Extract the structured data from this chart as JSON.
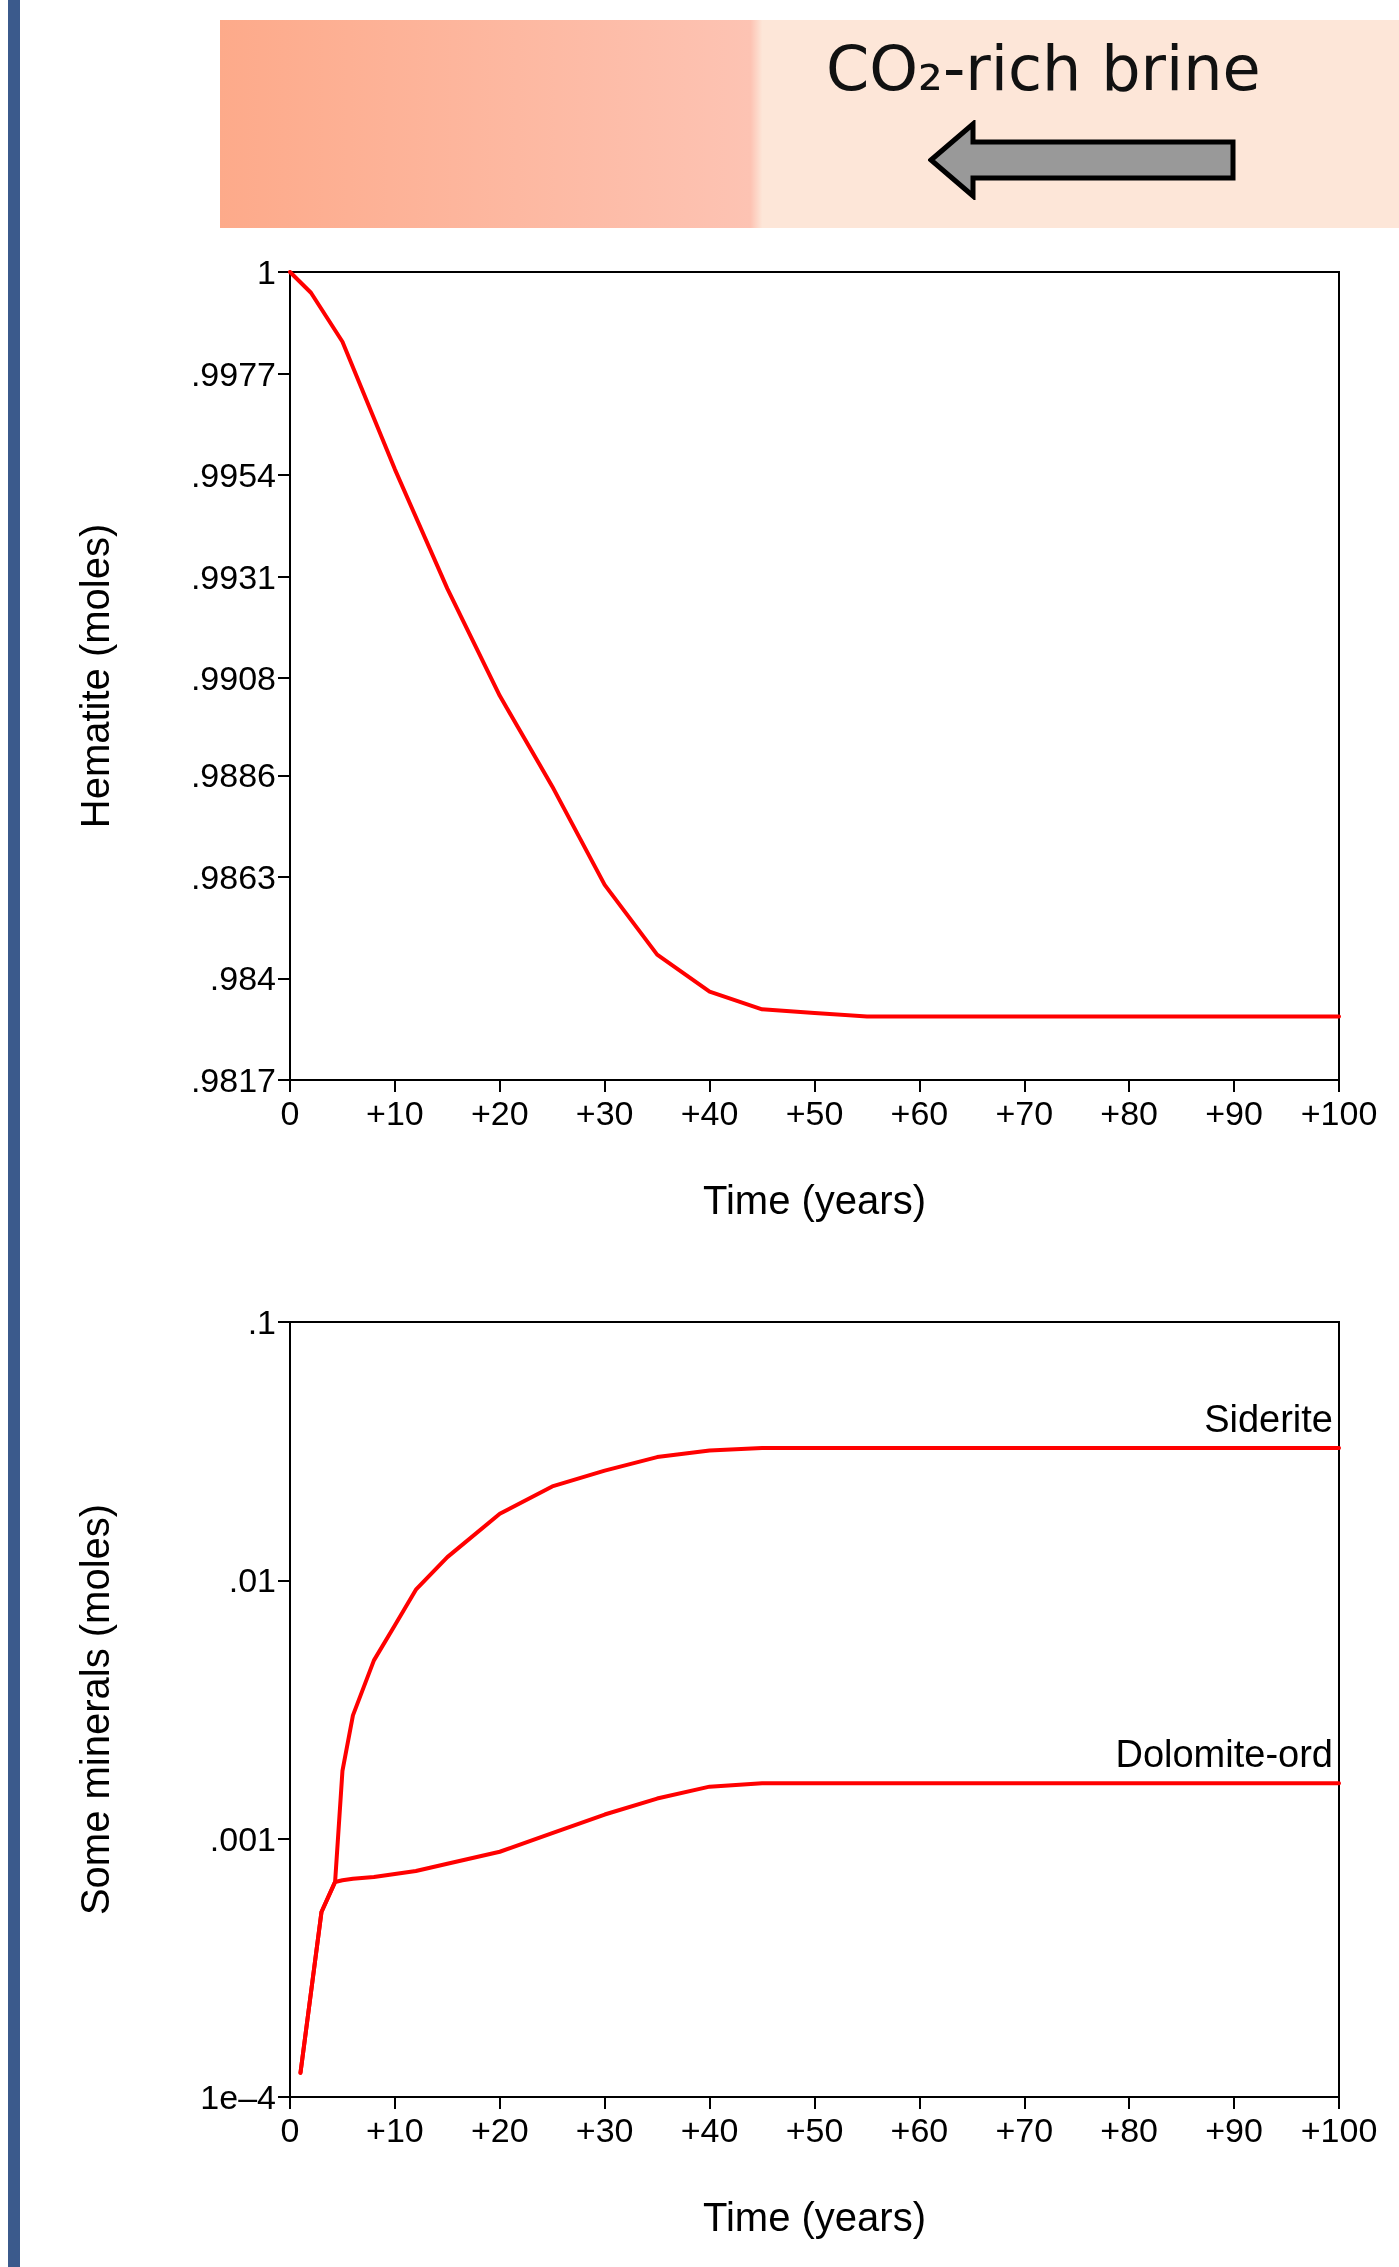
{
  "chart_data": [
    {
      "type": "line",
      "annotations": [
        "CO₂-rich brine"
      ],
      "xlabel": "Time (years)",
      "ylabel": "Hematite (moles)",
      "grid": false,
      "legend": false,
      "x": [
        0,
        2,
        5,
        10,
        15,
        20,
        25,
        30,
        35,
        40,
        45,
        50,
        55,
        100
      ],
      "series": [
        {
          "color": "#ff0000",
          "values": [
            1.0,
            0.99953,
            0.99842,
            0.99553,
            0.99283,
            0.9904,
            0.98835,
            0.98612,
            0.98454,
            0.9837,
            0.9833,
            0.98322,
            0.98314,
            0.98314
          ]
        }
      ],
      "xlim": [
        0,
        100
      ],
      "xticks": [
        0,
        {
          "value": 10,
          "label": "+10"
        },
        {
          "value": 20,
          "label": "+20"
        },
        {
          "value": 30,
          "label": "+30"
        },
        {
          "value": 40,
          "label": "+40"
        },
        {
          "value": 50,
          "label": "+50"
        },
        {
          "value": 60,
          "label": "+60"
        },
        {
          "value": 70,
          "label": "+70"
        },
        {
          "value": 80,
          "label": "+80"
        },
        {
          "value": 90,
          "label": "+90"
        },
        {
          "value": 100,
          "label": "+100"
        }
      ],
      "ylim": [
        0.9817,
        1
      ],
      "yticks": [
        {
          "value": 0.9817,
          "label": ".9817"
        },
        {
          "value": 0.984,
          "label": ".984"
        },
        {
          "value": 0.9863,
          "label": ".9863"
        },
        {
          "value": 0.9886,
          "label": ".9886"
        },
        {
          "value": 0.9908,
          "label": ".9908"
        },
        {
          "value": 0.9931,
          "label": ".9931"
        },
        {
          "value": 0.9954,
          "label": ".9954"
        },
        {
          "value": 0.9977,
          "label": ".9977"
        },
        1
      ]
    },
    {
      "type": "line",
      "xlabel": "Time (years)",
      "ylabel": "Some minerals (moles)",
      "grid": false,
      "legend": false,
      "log": "y",
      "x": [
        1,
        3,
        4.3,
        5,
        6,
        8,
        10,
        12,
        15,
        20,
        25,
        30,
        35,
        40,
        45,
        50,
        100
      ],
      "series": [
        {
          "name": "Siderite",
          "color": "#ff0000",
          "values": [
            0.000124,
            0.00052,
            0.00068,
            0.00183,
            0.003,
            0.0049,
            0.0067,
            0.0092,
            0.0123,
            0.0181,
            0.0231,
            0.0266,
            0.03,
            0.0318,
            0.0325,
            0.0325,
            0.0325
          ]
        },
        {
          "name": "Dolomite-ord",
          "color": "#ff0000",
          "values": [
            0.000124,
            0.00052,
            0.00068,
            0.00069,
            0.0007,
            0.00071,
            0.00073,
            0.00075,
            0.0008,
            0.00089,
            0.00105,
            0.00124,
            0.00143,
            0.00159,
            0.00164,
            0.00164,
            0.00164
          ]
        }
      ],
      "xlim": [
        0,
        100
      ],
      "xticks": [
        0,
        {
          "value": 10,
          "label": "+10"
        },
        {
          "value": 20,
          "label": "+20"
        },
        {
          "value": 30,
          "label": "+30"
        },
        {
          "value": 40,
          "label": "+40"
        },
        {
          "value": 50,
          "label": "+50"
        },
        {
          "value": 60,
          "label": "+60"
        },
        {
          "value": 70,
          "label": "+70"
        },
        {
          "value": 80,
          "label": "+80"
        },
        {
          "value": 90,
          "label": "+90"
        },
        {
          "value": 100,
          "label": "+100"
        }
      ],
      "ylim": [
        0.0001,
        0.1
      ],
      "yticks": [
        {
          "value": 0.0001,
          "label": "1e–4"
        },
        {
          "value": 0.001,
          "label": ".001"
        },
        {
          "value": 0.01,
          "label": ".01"
        },
        {
          "value": 0.1,
          "label": ".1"
        }
      ]
    }
  ]
}
